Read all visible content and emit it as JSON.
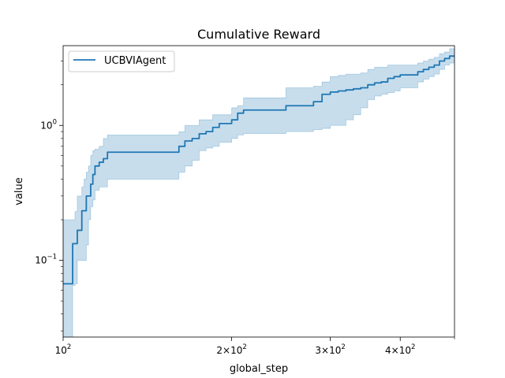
{
  "chart_data": {
    "type": "line",
    "title": "Cumulative Reward",
    "xlabel": "global_step",
    "ylabel": "value",
    "xscale": "log",
    "yscale": "log",
    "xlim": [
      100,
      500
    ],
    "ylim": [
      0.027,
      3.9
    ],
    "grid": false,
    "legend_position": "upper left",
    "x_ticks": [
      {
        "value": 100,
        "base": "10",
        "exp": "2"
      },
      {
        "value": 200,
        "base": "2×10",
        "exp": "2"
      },
      {
        "value": 300,
        "base": "3×10",
        "exp": "2"
      },
      {
        "value": 400,
        "base": "4×10",
        "exp": "2"
      }
    ],
    "y_ticks": [
      {
        "value": 0.1,
        "base": "10",
        "exp": "−1"
      },
      {
        "value": 1,
        "base": "10",
        "exp": "0"
      }
    ],
    "series": [
      {
        "name": "UCBVIAgent",
        "color": "#1f77b4",
        "x": [
          100,
          103,
          104,
          105,
          106,
          107,
          108,
          109,
          110,
          111,
          112,
          113,
          114,
          116,
          118,
          120,
          160,
          161,
          165,
          170,
          175,
          180,
          185,
          190,
          200,
          205,
          210,
          250,
          280,
          290,
          300,
          310,
          320,
          330,
          340,
          350,
          360,
          370,
          380,
          390,
          400,
          430,
          440,
          450,
          460,
          470,
          480,
          490,
          500
        ],
        "y": [
          0.067,
          0.067,
          0.133,
          0.133,
          0.167,
          0.167,
          0.233,
          0.233,
          0.3,
          0.3,
          0.367,
          0.433,
          0.5,
          0.533,
          0.567,
          0.633,
          0.633,
          0.7,
          0.767,
          0.8,
          0.867,
          0.9,
          0.967,
          1.033,
          1.1,
          1.233,
          1.3,
          1.4,
          1.5,
          1.7,
          1.767,
          1.8,
          1.833,
          1.867,
          1.9,
          2.0,
          2.067,
          2.1,
          2.233,
          2.3,
          2.367,
          2.5,
          2.6,
          2.7,
          2.8,
          3.0,
          3.133,
          3.267,
          3.3
        ],
        "band_upper": [
          0.2,
          0.2,
          0.2,
          0.23,
          0.3,
          0.3,
          0.35,
          0.4,
          0.45,
          0.5,
          0.6,
          0.65,
          0.667,
          0.7,
          0.8,
          0.85,
          0.85,
          0.9,
          1.0,
          1.0,
          1.1,
          1.1,
          1.2,
          1.2,
          1.35,
          1.4,
          1.6,
          1.9,
          1.95,
          2.1,
          2.3,
          2.35,
          2.4,
          2.4,
          2.45,
          2.6,
          2.7,
          2.7,
          2.8,
          2.8,
          2.8,
          2.9,
          3.0,
          3.1,
          3.2,
          3.4,
          3.5,
          3.7,
          3.7
        ],
        "band_lower": [
          0.02,
          0.02,
          0.065,
          0.067,
          0.1,
          0.1,
          0.1,
          0.1,
          0.13,
          0.2,
          0.25,
          0.28,
          0.33,
          0.35,
          0.35,
          0.4,
          0.4,
          0.45,
          0.5,
          0.55,
          0.65,
          0.68,
          0.7,
          0.75,
          0.8,
          0.85,
          0.87,
          0.9,
          0.93,
          0.95,
          1.0,
          1.0,
          1.1,
          1.2,
          1.35,
          1.55,
          1.65,
          1.7,
          1.75,
          1.8,
          1.9,
          2.1,
          2.2,
          2.3,
          2.4,
          2.6,
          2.8,
          2.9,
          3.0
        ]
      }
    ]
  }
}
